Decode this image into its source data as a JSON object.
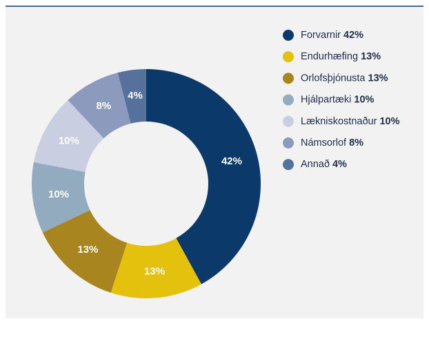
{
  "chart_data": {
    "type": "donut",
    "categories": [
      "Forvarnir",
      "Endurhæfing",
      "Orlofsþjónusta",
      "Hjálpartæki",
      "Lækniskostnaður",
      "Námsorlof",
      "Annað"
    ],
    "values": [
      42,
      13,
      13,
      10,
      10,
      8,
      4
    ],
    "value_labels": [
      "42%",
      "13%",
      "13%",
      "10%",
      "10%",
      "8%",
      "4%"
    ],
    "colors": [
      "#0b3a6a",
      "#e4c10c",
      "#a8851e",
      "#92abbf",
      "#c9cfe1",
      "#8c9bbd",
      "#56729c"
    ]
  }
}
